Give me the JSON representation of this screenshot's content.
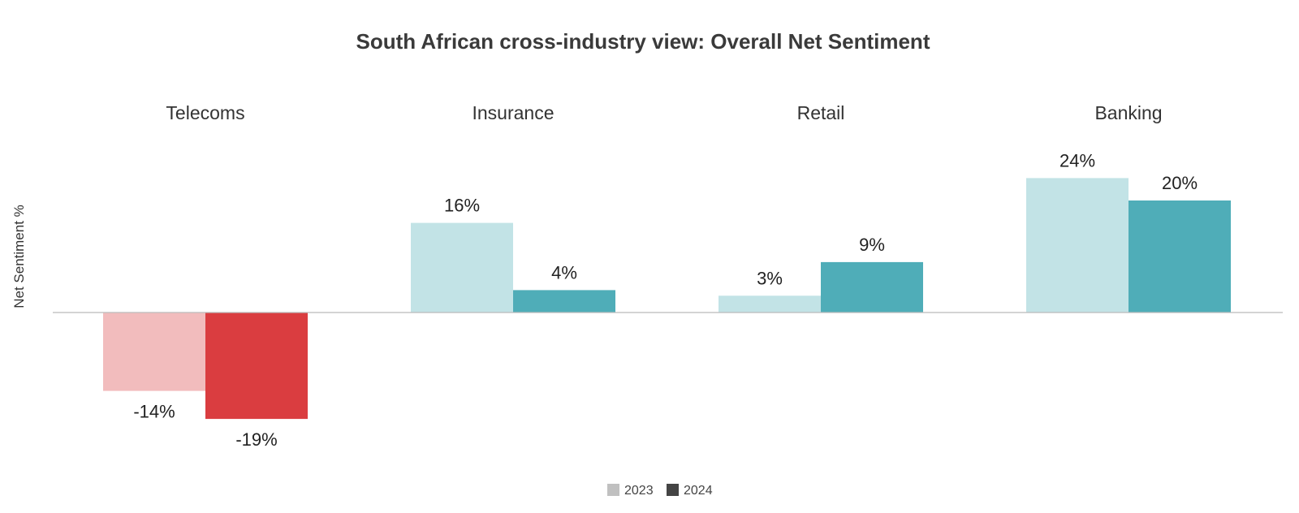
{
  "chart_data": {
    "type": "bar",
    "title": "South African cross-industry view: Overall Net Sentiment",
    "xlabel": "",
    "ylabel": "Net Sentiment %",
    "categories": [
      "Telecoms",
      "Insurance",
      "Retail",
      "Banking"
    ],
    "series": [
      {
        "name": "2023",
        "values": [
          -14,
          16,
          3,
          24
        ]
      },
      {
        "name": "2024",
        "values": [
          -19,
          4,
          9,
          20
        ]
      }
    ],
    "value_labels": [
      [
        "-14%",
        "16%",
        "3%",
        "24%"
      ],
      [
        "-19%",
        "4%",
        "9%",
        "20%"
      ]
    ],
    "ylim": [
      -27,
      27
    ],
    "grid": false,
    "legend_position": "bottom-center",
    "colors": {
      "positive": [
        "#c2e3e6",
        "#4fadb8"
      ],
      "negative": [
        "#f2bcbd",
        "#da3d40"
      ],
      "legend": [
        "#c0c0c0",
        "#444444"
      ],
      "baseline": "#bbbbbb"
    }
  }
}
